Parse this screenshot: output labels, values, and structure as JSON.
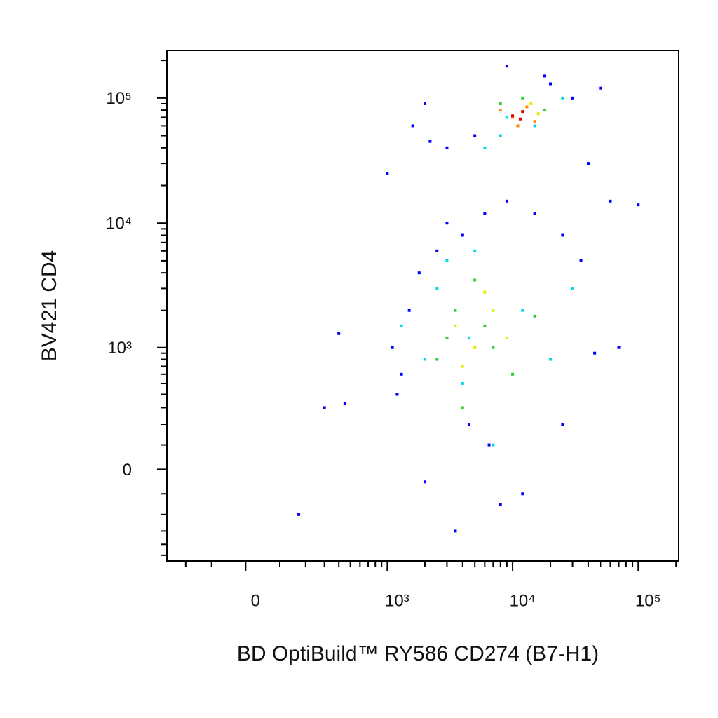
{
  "chart_data": {
    "type": "scatter",
    "x_label": "BD OptiBuild™ RY586 CD274 (B7-H1)",
    "y_label": "BV421 CD4",
    "xscale": "asinh",
    "yscale": "asinh",
    "xlim": [
      -300,
      210000
    ],
    "ylim": [
      -560,
      240000
    ],
    "xticks": [
      {
        "value": 0,
        "label": "0"
      },
      {
        "value": 1000,
        "label": "10³"
      },
      {
        "value": 10000,
        "label": "10⁴"
      },
      {
        "value": 100000,
        "label": "10⁵"
      }
    ],
    "yticks": [
      {
        "value": 0,
        "label": "0"
      },
      {
        "value": 1000,
        "label": "10³"
      },
      {
        "value": 10000,
        "label": "10⁴"
      },
      {
        "value": 100000,
        "label": "10⁵"
      }
    ],
    "xminorticks": [
      -200,
      -100,
      100,
      200,
      300,
      400,
      500,
      600,
      700,
      800,
      900,
      2000,
      3000,
      4000,
      5000,
      6000,
      7000,
      8000,
      9000,
      20000,
      30000,
      40000,
      50000,
      60000,
      70000,
      80000,
      90000,
      200000
    ],
    "yminorticks": [
      -500,
      -400,
      -300,
      -200,
      -100,
      100,
      200,
      300,
      400,
      500,
      600,
      700,
      800,
      900,
      2000,
      3000,
      4000,
      5000,
      6000,
      7000,
      8000,
      9000,
      20000,
      30000,
      40000,
      50000,
      60000,
      70000,
      80000,
      90000,
      200000
    ],
    "series": [
      {
        "color": "#0000ff",
        "x": [
          1000,
          450,
          300,
          170,
          400,
          1300,
          2000,
          1500,
          1100,
          1800,
          2500,
          3000,
          4000,
          6000,
          9000,
          15000,
          25000,
          35000,
          60000,
          100000,
          40000,
          20000,
          5000,
          3000,
          2000,
          1200,
          8000,
          12000,
          25000,
          45000,
          70000,
          4500,
          6500,
          3500,
          18000,
          30000,
          1600,
          2200,
          9000,
          50000
        ],
        "y": [
          25000,
          330,
          300,
          -200,
          1300,
          600,
          -50,
          2000,
          1000,
          4000,
          6000,
          10000,
          8000,
          12000,
          15000,
          12000,
          8000,
          5000,
          15000,
          14000,
          30000,
          130000,
          50000,
          40000,
          90000,
          400,
          -150,
          -100,
          200,
          900,
          1000,
          200,
          100,
          -300,
          150000,
          100000,
          60000,
          45000,
          180000,
          120000
        ]
      },
      {
        "color": "#00d8e8",
        "x": [
          1300,
          2500,
          4000,
          7000,
          12000,
          20000,
          30000,
          3000,
          5000,
          9000,
          15000,
          6000,
          2000,
          25000,
          8000,
          4500
        ],
        "y": [
          1500,
          3000,
          500,
          100,
          2000,
          800,
          3000,
          5000,
          6000,
          70000,
          60000,
          40000,
          800,
          100000,
          50000,
          1200
        ]
      },
      {
        "color": "#30d030",
        "x": [
          2500,
          3500,
          5000,
          7000,
          10000,
          15000,
          4000,
          6000,
          8000,
          12000,
          18000,
          3000
        ],
        "y": [
          800,
          2000,
          3500,
          1000,
          600,
          1800,
          300,
          1500,
          90000,
          100000,
          80000,
          1200
        ]
      },
      {
        "color": "#e8e800",
        "x": [
          3500,
          5000,
          7000,
          9000,
          4000,
          6000,
          14000,
          11000,
          16000
        ],
        "y": [
          1500,
          1000,
          2000,
          1200,
          700,
          2800,
          90000,
          60000,
          75000
        ]
      },
      {
        "color": "#ff8800",
        "x": [
          8000,
          10000,
          13000,
          11000,
          15000
        ],
        "y": [
          80000,
          70000,
          85000,
          60000,
          65000
        ]
      },
      {
        "color": "#e00000",
        "x": [
          10000,
          12000,
          11500
        ],
        "y": [
          72000,
          78000,
          68000
        ]
      }
    ]
  }
}
